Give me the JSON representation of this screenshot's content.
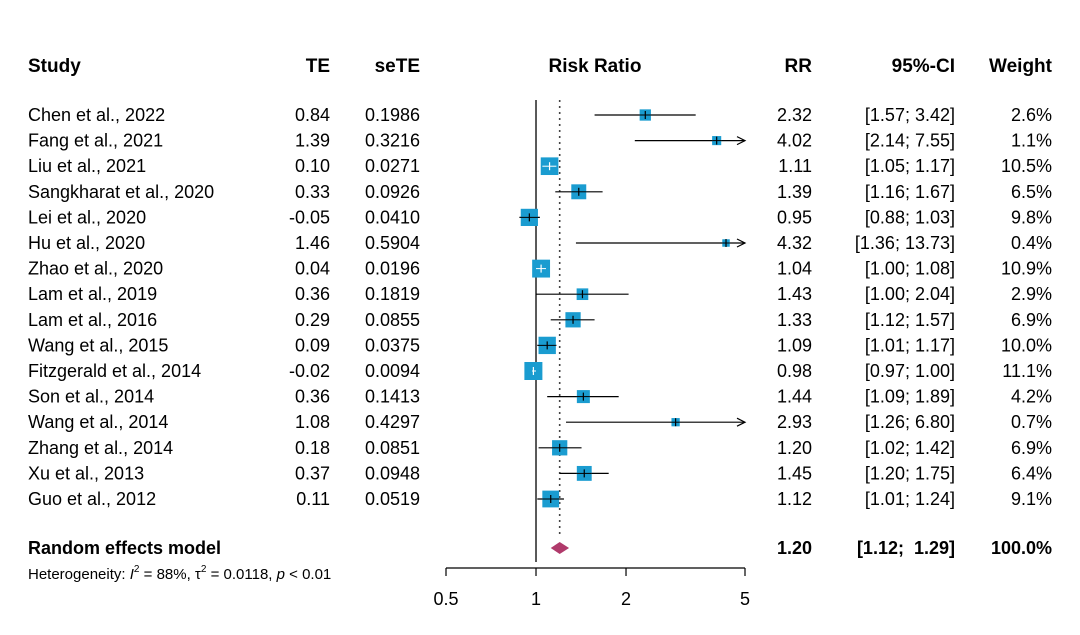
{
  "headers": {
    "study": "Study",
    "te": "TE",
    "sete": "seTE",
    "plot": "Risk Ratio",
    "rr": "RR",
    "ci": "95%-CI",
    "weight": "Weight"
  },
  "chart_data": {
    "type": "forest",
    "scale": "log",
    "xlim": [
      0.5,
      5
    ],
    "ticks": [
      "0.5",
      "1",
      "2",
      "5"
    ],
    "reference_line": 1,
    "pooled_line": 1.2,
    "colors": {
      "box": "#1a9cd0",
      "diamond": "#b03a6b",
      "line": "#000000"
    },
    "studies": [
      {
        "name": "Chen et al., 2022",
        "te": "0.84",
        "sete": "0.1986",
        "rr": 2.32,
        "lo": 1.57,
        "hi": 3.42,
        "rr_text": "2.32",
        "ci_text": "[1.57;  3.42]",
        "weight": 2.6,
        "weight_text": "2.6%"
      },
      {
        "name": "Fang et al., 2021",
        "te": "1.39",
        "sete": "0.3216",
        "rr": 4.02,
        "lo": 2.14,
        "hi": 7.55,
        "rr_text": "4.02",
        "ci_text": "[2.14;  7.55]",
        "weight": 1.1,
        "weight_text": "1.1%"
      },
      {
        "name": "Liu et al., 2021",
        "te": "0.10",
        "sete": "0.0271",
        "rr": 1.11,
        "lo": 1.05,
        "hi": 1.17,
        "rr_text": "1.11",
        "ci_text": "[1.05;  1.17]",
        "weight": 10.5,
        "weight_text": "10.5%"
      },
      {
        "name": "Sangkharat et al., 2020",
        "te": "0.33",
        "sete": "0.0926",
        "rr": 1.39,
        "lo": 1.16,
        "hi": 1.67,
        "rr_text": "1.39",
        "ci_text": "[1.16;  1.67]",
        "weight": 6.5,
        "weight_text": "6.5%"
      },
      {
        "name": "Lei et al., 2020",
        "te": "-0.05",
        "sete": "0.0410",
        "rr": 0.95,
        "lo": 0.88,
        "hi": 1.03,
        "rr_text": "0.95",
        "ci_text": "[0.88;  1.03]",
        "weight": 9.8,
        "weight_text": "9.8%"
      },
      {
        "name": "Hu et al., 2020",
        "te": "1.46",
        "sete": "0.5904",
        "rr": 4.32,
        "lo": 1.36,
        "hi": 13.73,
        "rr_text": "4.32",
        "ci_text": "[1.36; 13.73]",
        "weight": 0.4,
        "weight_text": "0.4%"
      },
      {
        "name": "Zhao et al., 2020",
        "te": "0.04",
        "sete": "0.0196",
        "rr": 1.04,
        "lo": 1.0,
        "hi": 1.08,
        "rr_text": "1.04",
        "ci_text": "[1.00;  1.08]",
        "weight": 10.9,
        "weight_text": "10.9%"
      },
      {
        "name": "Lam et al., 2019",
        "te": "0.36",
        "sete": "0.1819",
        "rr": 1.43,
        "lo": 1.0,
        "hi": 2.04,
        "rr_text": "1.43",
        "ci_text": "[1.00;  2.04]",
        "weight": 2.9,
        "weight_text": "2.9%"
      },
      {
        "name": "Lam et al., 2016",
        "te": "0.29",
        "sete": "0.0855",
        "rr": 1.33,
        "lo": 1.12,
        "hi": 1.57,
        "rr_text": "1.33",
        "ci_text": "[1.12;  1.57]",
        "weight": 6.9,
        "weight_text": "6.9%"
      },
      {
        "name": "Wang et al., 2015",
        "te": "0.09",
        "sete": "0.0375",
        "rr": 1.09,
        "lo": 1.01,
        "hi": 1.17,
        "rr_text": "1.09",
        "ci_text": "[1.01;  1.17]",
        "weight": 10.0,
        "weight_text": "10.0%"
      },
      {
        "name": "Fitzgerald et al., 2014",
        "te": "-0.02",
        "sete": "0.0094",
        "rr": 0.98,
        "lo": 0.97,
        "hi": 1.0,
        "rr_text": "0.98",
        "ci_text": "[0.97;  1.00]",
        "weight": 11.1,
        "weight_text": "11.1%"
      },
      {
        "name": "Son et al., 2014",
        "te": "0.36",
        "sete": "0.1413",
        "rr": 1.44,
        "lo": 1.09,
        "hi": 1.89,
        "rr_text": "1.44",
        "ci_text": "[1.09;  1.89]",
        "weight": 4.2,
        "weight_text": "4.2%"
      },
      {
        "name": "Wang et al., 2014",
        "te": "1.08",
        "sete": "0.4297",
        "rr": 2.93,
        "lo": 1.26,
        "hi": 6.8,
        "rr_text": "2.93",
        "ci_text": "[1.26;  6.80]",
        "weight": 0.7,
        "weight_text": "0.7%"
      },
      {
        "name": "Zhang et al., 2014",
        "te": "0.18",
        "sete": "0.0851",
        "rr": 1.2,
        "lo": 1.02,
        "hi": 1.42,
        "rr_text": "1.20",
        "ci_text": "[1.02;  1.42]",
        "weight": 6.9,
        "weight_text": "6.9%"
      },
      {
        "name": "Xu et al., 2013",
        "te": "0.37",
        "sete": "0.0948",
        "rr": 1.45,
        "lo": 1.2,
        "hi": 1.75,
        "rr_text": "1.45",
        "ci_text": "[1.20;  1.75]",
        "weight": 6.4,
        "weight_text": "6.4%"
      },
      {
        "name": "Guo et al., 2012",
        "te": "0.11",
        "sete": "0.0519",
        "rr": 1.12,
        "lo": 1.01,
        "hi": 1.24,
        "rr_text": "1.12",
        "ci_text": "[1.01;  1.24]",
        "weight": 9.1,
        "weight_text": "9.1%"
      }
    ],
    "pooled": {
      "label": "Random effects model",
      "rr": 1.2,
      "lo": 1.12,
      "hi": 1.29,
      "rr_text": "1.20",
      "ci_text": "[1.12;  1.29]",
      "weight_text": "100.0%"
    },
    "heterogeneity": {
      "prefix": "Heterogeneity: ",
      "i2_symbol": "I",
      "i2_exp": "2",
      "i2_value": " = 88%, ",
      "tau_symbol": "τ",
      "tau_exp": "2",
      "tau_value": " = 0.0118, ",
      "p_symbol": "p",
      "p_value": " < 0.01"
    }
  }
}
